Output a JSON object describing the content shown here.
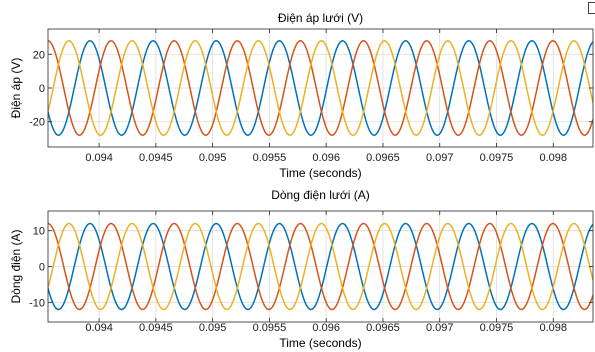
{
  "chart_data": [
    {
      "type": "line",
      "title": "Điện áp lưới (V)",
      "xlabel": "Time (seconds)",
      "ylabel": "Điện áp (V)",
      "xlim": [
        0.09355,
        0.09835
      ],
      "ylim": [
        -35,
        35
      ],
      "x_ticks": [
        0.094,
        0.0945,
        0.095,
        0.0955,
        0.096,
        0.0965,
        0.097,
        0.0975,
        0.098
      ],
      "x_tick_labels": [
        "0.094",
        "0.0945",
        "0.095",
        "0.0955",
        "0.096",
        "0.0965",
        "0.097",
        "0.0975",
        "0.098"
      ],
      "y_ticks": [
        -20,
        0,
        20
      ],
      "y_tick_labels": [
        "-20",
        "0",
        "20"
      ],
      "grid": true,
      "waveform": {
        "amplitude": 28,
        "period": 0.000556,
        "peak_at": 0.09392
      },
      "series": [
        {
          "color": "#0072BD",
          "phase_deg": 0
        },
        {
          "color": "#D95319",
          "phase_deg": -120
        },
        {
          "color": "#EDB120",
          "phase_deg": 120
        }
      ]
    },
    {
      "type": "line",
      "title": "Dòng điện lưới (A)",
      "xlabel": "Time (seconds)",
      "ylabel": "Dòng điện (A)",
      "xlim": [
        0.09355,
        0.09835
      ],
      "ylim": [
        -15.5,
        15.5
      ],
      "x_ticks": [
        0.094,
        0.0945,
        0.095,
        0.0955,
        0.096,
        0.0965,
        0.097,
        0.0975,
        0.098
      ],
      "x_tick_labels": [
        "0.094",
        "0.0945",
        "0.095",
        "0.0955",
        "0.096",
        "0.0965",
        "0.097",
        "0.0975",
        "0.098"
      ],
      "y_ticks": [
        -10,
        0,
        10
      ],
      "y_tick_labels": [
        "-10",
        "0",
        "10"
      ],
      "grid": true,
      "waveform": {
        "amplitude": 12,
        "period": 0.000556,
        "peak_at": 0.09392
      },
      "series": [
        {
          "color": "#0072BD",
          "phase_deg": 0
        },
        {
          "color": "#D95319",
          "phase_deg": -120
        },
        {
          "color": "#EDB120",
          "phase_deg": 120
        }
      ]
    }
  ]
}
